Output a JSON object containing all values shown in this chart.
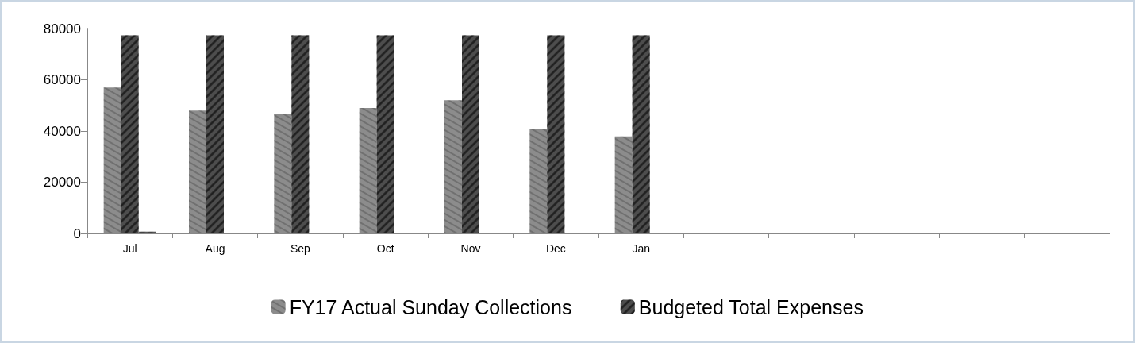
{
  "chart_data": {
    "type": "bar",
    "categories": [
      "Jul",
      "Aug",
      "Sep",
      "Oct",
      "Nov",
      "Dec",
      "Jan",
      null,
      null,
      null,
      null,
      null
    ],
    "series": [
      {
        "name": "FY17 Actual Sunday Collections",
        "color": "#8c8c8c",
        "values": [
          57000,
          48000,
          46600,
          49000,
          52000,
          40800,
          37900,
          null,
          null,
          null,
          null,
          null
        ]
      },
      {
        "name": "Budgeted Total Expenses",
        "color": "#4d4d4d",
        "values": [
          77400,
          77400,
          77400,
          77400,
          77400,
          77400,
          77400,
          null,
          null,
          null,
          null,
          null
        ]
      },
      {
        "color": "#555555",
        "values": [
          700,
          null,
          null,
          null,
          null,
          null,
          null,
          null,
          null,
          null,
          null,
          null
        ]
      }
    ],
    "ylim": [
      0,
      80000
    ],
    "yticks": [
      0,
      20000,
      40000,
      60000,
      80000
    ],
    "grid": false,
    "legend": "bottom"
  }
}
